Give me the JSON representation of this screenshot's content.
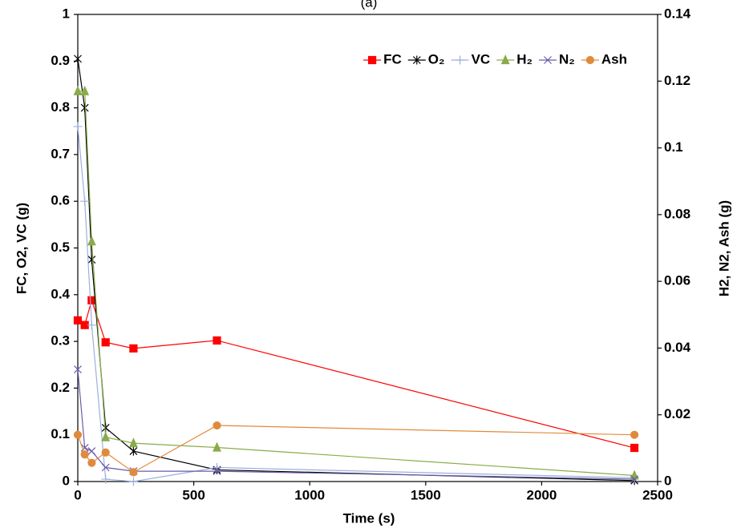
{
  "chart_data": {
    "type": "line",
    "title": "(a)",
    "x_label": "Time (s)",
    "y_label": "FC, O2, VC (g)",
    "y2_label": "H2, N2, Ash (g)",
    "x": [
      0,
      30,
      60,
      120,
      240,
      600,
      2400
    ],
    "xlim": [
      0,
      2500
    ],
    "xticks": [
      0,
      500,
      1000,
      1500,
      2000,
      2500
    ],
    "ylim": [
      0,
      1
    ],
    "yticks": [
      0,
      0.1,
      0.2,
      0.3,
      0.4,
      0.5,
      0.6,
      0.7,
      0.8,
      0.9,
      1
    ],
    "y2lim": [
      0,
      0.14
    ],
    "y2ticks": [
      0,
      0.02,
      0.04,
      0.06,
      0.08,
      0.1,
      0.12,
      0.14
    ],
    "grid": false,
    "legend": "top-right",
    "series": [
      {
        "name": "FC",
        "color": "#ff0000",
        "marker": "square",
        "values": [
          0.345,
          0.335,
          0.388,
          0.298,
          0.285,
          0.302,
          0.072
        ]
      },
      {
        "name": "O₂",
        "color": "#000000",
        "marker": "asterisk",
        "values": [
          0.905,
          0.8,
          0.475,
          0.115,
          0.065,
          0.025,
          0.002
        ]
      },
      {
        "name": "VC",
        "color": "#9bb0dd",
        "marker": "plus",
        "values": [
          0.76,
          0.6,
          0.335,
          0.005,
          0.0,
          0.03,
          0.008
        ]
      },
      {
        "name": "H₂",
        "color": "#8aab4a",
        "marker": "triangle",
        "axis": "y2",
        "values": [
          0.117,
          0.117,
          0.072,
          0.0133,
          0.0115,
          0.0102,
          0.0018
        ]
      },
      {
        "name": "N₂",
        "color": "#6a5ca8",
        "marker": "cross",
        "axis": "y2",
        "values": [
          0.0336,
          0.0101,
          0.0091,
          0.0042,
          0.0031,
          0.0031,
          0.0007
        ]
      },
      {
        "name": "Ash",
        "color": "#e08a3c",
        "marker": "circle",
        "axis": "y2",
        "values": [
          0.014,
          0.0081,
          0.0056,
          0.0087,
          0.0028,
          0.0168,
          0.014
        ]
      }
    ]
  }
}
